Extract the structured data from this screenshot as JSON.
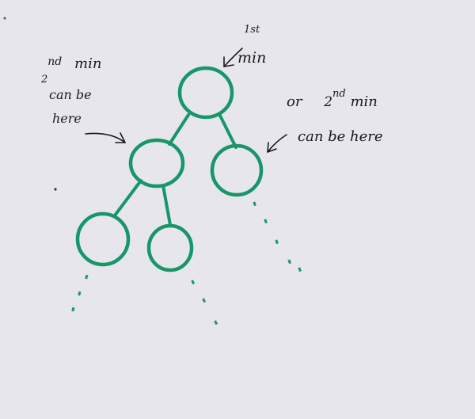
{
  "annotations": {
    "first_min": {
      "sup": "1st",
      "text": "min"
    },
    "second_min_left": {
      "sup": "nd",
      "number": "2",
      "word": "min",
      "line2": "can be",
      "line3": "here"
    },
    "second_min_right": {
      "prefix": "or",
      "number": "2",
      "sup": "nd",
      "word": "min",
      "line2": "can be here"
    }
  },
  "colors": {
    "ink": "#18966a",
    "pen": "#1a1a1a",
    "paper": "#e6e6ec"
  }
}
